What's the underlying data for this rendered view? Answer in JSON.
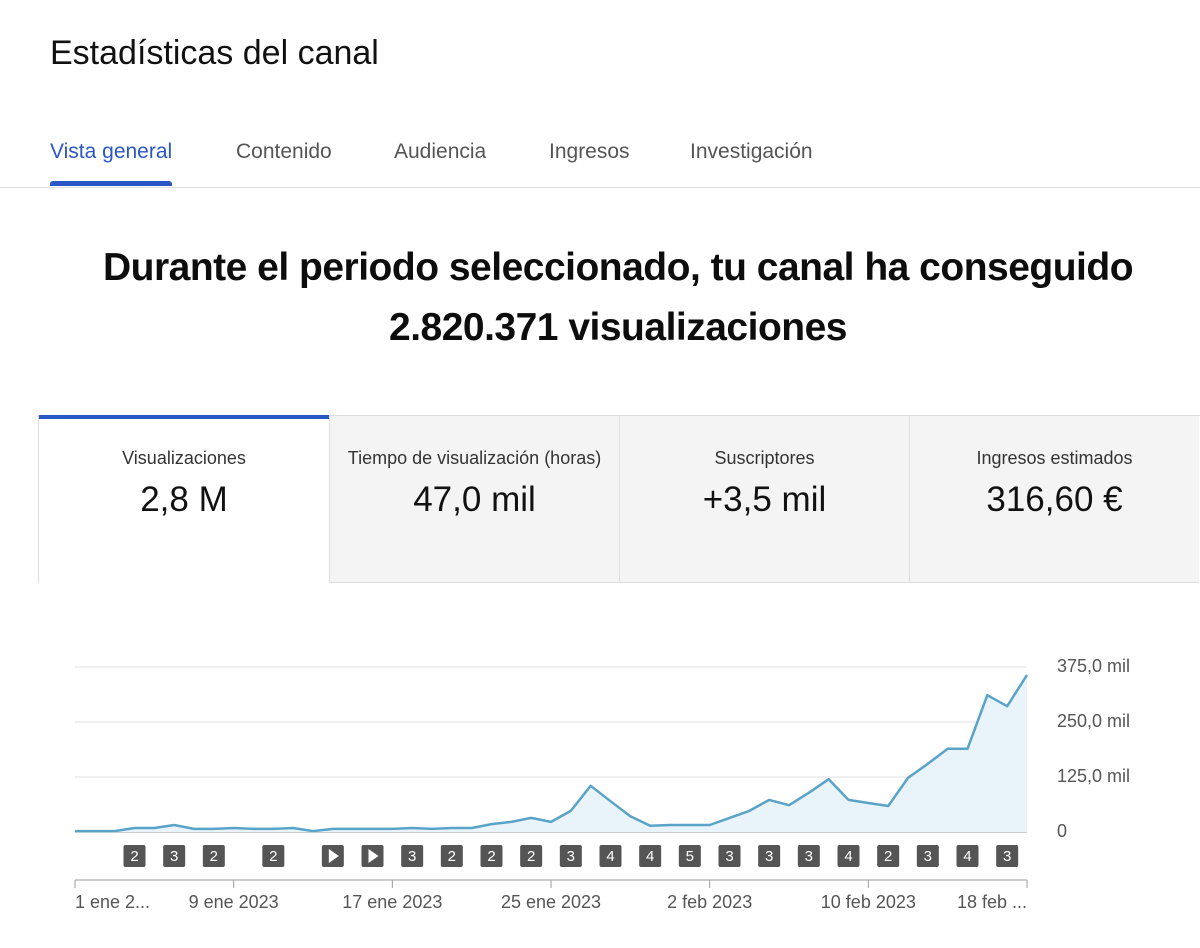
{
  "header": {
    "title": "Estadísticas del canal"
  },
  "tabs": [
    "Vista general",
    "Contenido",
    "Audiencia",
    "Ingresos",
    "Investigación"
  ],
  "headline": {
    "line1": "Durante el periodo seleccionado, tu canal ha conseguido",
    "line2": "2.820.371 visualizaciones"
  },
  "metrics": [
    {
      "label": "Visualizaciones",
      "value": "2,8 M"
    },
    {
      "label": "Tiempo de visualización (horas)",
      "value": "47,0 mil"
    },
    {
      "label": "Suscriptores",
      "value": "+3,5 mil"
    },
    {
      "label": "Ingresos estimados",
      "value": "316,60 €"
    }
  ],
  "chart_data": {
    "type": "area",
    "x": [
      "2023-01-01",
      "2023-01-02",
      "2023-01-03",
      "2023-01-04",
      "2023-01-05",
      "2023-01-06",
      "2023-01-07",
      "2023-01-08",
      "2023-01-09",
      "2023-01-10",
      "2023-01-11",
      "2023-01-12",
      "2023-01-13",
      "2023-01-14",
      "2023-01-15",
      "2023-01-16",
      "2023-01-17",
      "2023-01-18",
      "2023-01-19",
      "2023-01-20",
      "2023-01-21",
      "2023-01-22",
      "2023-01-23",
      "2023-01-24",
      "2023-01-25",
      "2023-01-26",
      "2023-01-27",
      "2023-01-28",
      "2023-01-29",
      "2023-01-30",
      "2023-01-31",
      "2023-02-01",
      "2023-02-02",
      "2023-02-03",
      "2023-02-04",
      "2023-02-05",
      "2023-02-06",
      "2023-02-07",
      "2023-02-08",
      "2023-02-09",
      "2023-02-10",
      "2023-02-11",
      "2023-02-12",
      "2023-02-13",
      "2023-02-14",
      "2023-02-15",
      "2023-02-16",
      "2023-02-17",
      "2023-02-18"
    ],
    "values": [
      2000,
      2000,
      2000,
      9000,
      9000,
      16000,
      7000,
      7000,
      9000,
      7000,
      7000,
      9000,
      2000,
      7000,
      7000,
      7000,
      7000,
      9000,
      7000,
      9000,
      9000,
      18000,
      23000,
      32000,
      23000,
      48000,
      105000,
      70000,
      36000,
      14000,
      16000,
      16000,
      16000,
      32000,
      48000,
      73000,
      61000,
      89000,
      120000,
      73000,
      66000,
      59000,
      123000,
      155000,
      189000,
      189000,
      311000,
      286000,
      357000
    ],
    "color": "#5aa3c8",
    "ylim": [
      0,
      375000
    ],
    "yticks": [
      0,
      {
        "value": 125000,
        "label": "125,0 mil"
      },
      {
        "value": 250000,
        "label": "250,0 mil"
      },
      {
        "value": 375000,
        "label": "375,0 mil"
      }
    ],
    "xticks": [
      {
        "value": "2023-01-01",
        "label": "1 ene 2..."
      },
      {
        "value": "2023-01-09",
        "label": "9 ene 2023"
      },
      {
        "value": "2023-01-17",
        "label": "17 ene 2023"
      },
      {
        "value": "2023-01-25",
        "label": "25 ene 2023"
      },
      {
        "value": "2023-02-02",
        "label": "2 feb 2023"
      },
      {
        "value": "2023-02-10",
        "label": "10 feb 2023"
      },
      {
        "value": "2023-02-18",
        "label": "18 feb ..."
      }
    ],
    "grid": true,
    "markers": {
      "x": [
        "2023-01-04",
        "2023-01-06",
        "2023-01-08",
        "2023-01-11",
        "2023-01-14",
        "2023-01-16",
        "2023-01-18",
        "2023-01-20",
        "2023-01-22",
        "2023-01-24",
        "2023-01-26",
        "2023-01-28",
        "2023-01-30",
        "2023-02-01",
        "2023-02-03",
        "2023-02-05",
        "2023-02-07",
        "2023-02-09",
        "2023-02-11",
        "2023-02-13",
        "2023-02-15",
        "2023-02-17"
      ],
      "counts": [
        2,
        3,
        2,
        2,
        null,
        null,
        3,
        2,
        2,
        2,
        3,
        4,
        4,
        5,
        3,
        3,
        3,
        4,
        2,
        3,
        4,
        3
      ]
    }
  }
}
